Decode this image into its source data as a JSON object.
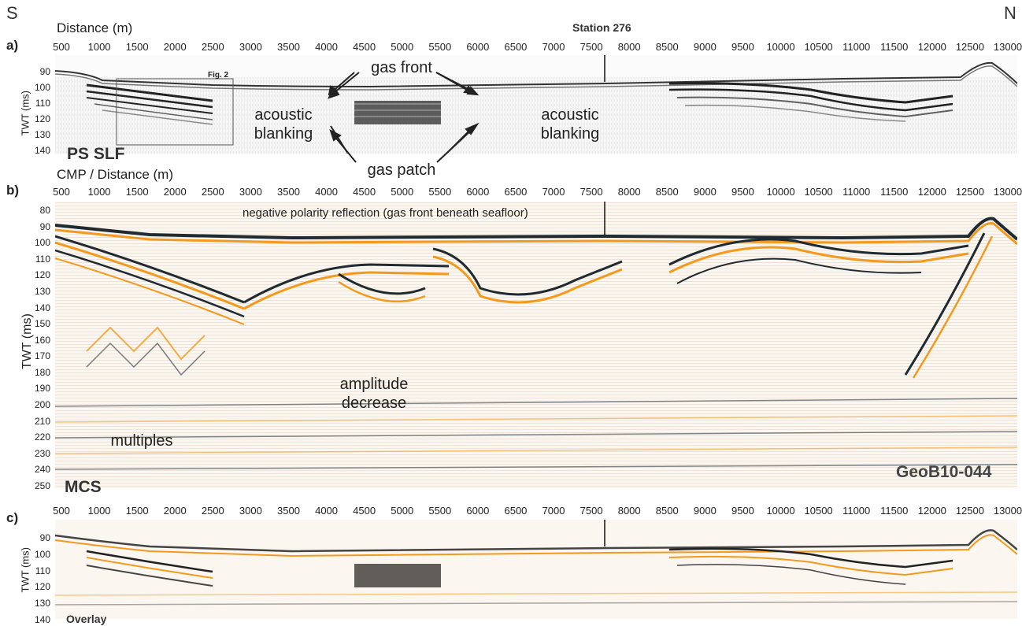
{
  "header": {
    "south": "S",
    "north": "N",
    "distance_label": "Distance (m)",
    "station_label": "Station 276"
  },
  "panels": [
    {
      "letter": "a)",
      "ylabel": "TWT (ms)",
      "yticks": [
        "90",
        "100",
        "110",
        "120",
        "130",
        "140"
      ],
      "name": "PS SLF",
      "fig_box_label": "Fig. 2"
    },
    {
      "letter": "b)",
      "xlabel": "CMP / Distance (m)",
      "ylabel": "TWT (ms)",
      "yticks": [
        "80",
        "90",
        "100",
        "110",
        "120",
        "130",
        "140",
        "150",
        "160",
        "170",
        "180",
        "190",
        "200",
        "210",
        "220",
        "230",
        "240",
        "250"
      ],
      "name": "MCS",
      "line_id": "GeoB10-044"
    },
    {
      "letter": "c)",
      "ylabel": "TWT (ms)",
      "yticks": [
        "90",
        "100",
        "110",
        "120",
        "130",
        "140"
      ],
      "name": "Overlay"
    }
  ],
  "xticks": [
    "500",
    "1000",
    "1500",
    "2000",
    "2500",
    "3000",
    "3500",
    "4000",
    "4500",
    "5000",
    "5500",
    "6000",
    "6500",
    "7000",
    "7500",
    "8000",
    "8500",
    "9000",
    "9500",
    "10000",
    "10500",
    "11000",
    "11500",
    "12000",
    "12500",
    "13000"
  ],
  "annotations": {
    "gas_front": "gas front",
    "gas_patch": "gas patch",
    "acoustic_blanking_1": "acoustic blanking",
    "acoustic_blanking_2": "acoustic blanking",
    "negative_polarity": "negative polarity reflection (gas front beneath seafloor)",
    "amplitude_decrease": "amplitude decrease",
    "multiples": "multiples"
  },
  "colors": {
    "dark_reflector": "#1f2a33",
    "orange_reflector": "#f39a1e",
    "background": "#ffffff"
  }
}
